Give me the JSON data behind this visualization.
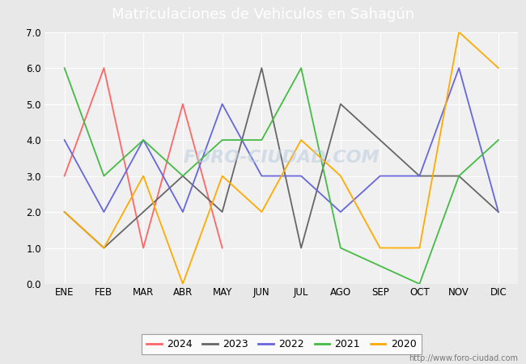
{
  "title": "Matriculaciones de Vehiculos en Sahagún",
  "months": [
    "ENE",
    "FEB",
    "MAR",
    "ABR",
    "MAY",
    "JUN",
    "JUL",
    "AGO",
    "SEP",
    "OCT",
    "NOV",
    "DIC"
  ],
  "series": {
    "2024": {
      "color": "#ff6666",
      "data": [
        3.0,
        6.0,
        1.0,
        5.0,
        1.0,
        null,
        null,
        null,
        null,
        null,
        null,
        null
      ]
    },
    "2023": {
      "color": "#666666",
      "data": [
        2.0,
        1.0,
        2.0,
        3.0,
        2.0,
        6.0,
        1.0,
        5.0,
        null,
        3.0,
        3.0,
        2.0
      ]
    },
    "2022": {
      "color": "#6666dd",
      "data": [
        4.0,
        2.0,
        4.0,
        2.0,
        5.0,
        3.0,
        3.0,
        2.0,
        3.0,
        3.0,
        6.0,
        2.0
      ]
    },
    "2021": {
      "color": "#44bb44",
      "data": [
        6.0,
        3.0,
        4.0,
        3.0,
        4.0,
        4.0,
        6.0,
        1.0,
        null,
        0.0,
        3.0,
        4.0
      ]
    },
    "2020": {
      "color": "#ffaa00",
      "data": [
        2.0,
        1.0,
        3.0,
        0.0,
        3.0,
        2.0,
        4.0,
        3.0,
        1.0,
        1.0,
        7.0,
        6.0
      ]
    }
  },
  "ylim": [
    0.0,
    7.0
  ],
  "yticks": [
    0.0,
    1.0,
    2.0,
    3.0,
    4.0,
    5.0,
    6.0,
    7.0
  ],
  "title_bg_color": "#5b9bd5",
  "title_color": "white",
  "plot_bg_color": "#e8e8e8",
  "plot_inner_bg": "#f0f0f0",
  "grid_color": "white",
  "watermark": "FORO-CIUDAD.COM",
  "url": "http://www.foro-ciudad.com",
  "legend_years": [
    "2024",
    "2023",
    "2022",
    "2021",
    "2020"
  ],
  "title_fontsize": 13,
  "tick_fontsize": 8.5,
  "legend_fontsize": 9
}
